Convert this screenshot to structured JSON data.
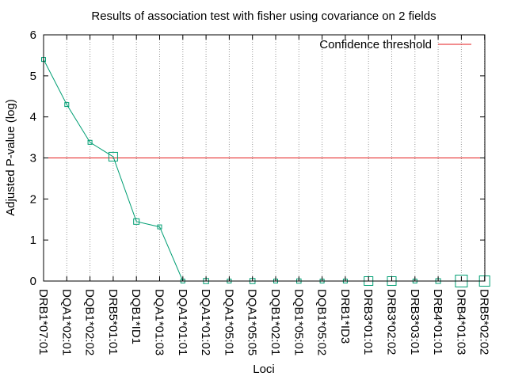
{
  "chart_data": {
    "type": "line",
    "title": "Results of association test with fisher using covariance on 2 fields",
    "xlabel": "Loci",
    "ylabel": "Adjusted P-value (log)",
    "ylim": [
      0,
      6
    ],
    "yticks": [
      "0",
      "1",
      "2",
      "3",
      "4",
      "5",
      "6"
    ],
    "grid": "vertical dotted lines at each category",
    "legend": "top-right",
    "categories": [
      "DRB1*07:01",
      "DQA1*02:01",
      "DQB1*02:02",
      "DRB5*01:01",
      "DQB1*ID1",
      "DQA1*01:03",
      "DQA1*01:01",
      "DQA1*01:02",
      "DQA1*05:01",
      "DQA1*05:05",
      "DQB1*02:01",
      "DQB1*05:01",
      "DQB1*05:02",
      "DRB1*ID3",
      "DRB3*01:01",
      "DRB3*02:02",
      "DRB3*03:01",
      "DRB4*01:01",
      "DRB4*01:03",
      "DRB5*02:02"
    ],
    "series": [
      {
        "name": "",
        "color": "#009e73",
        "values": [
          5.4,
          4.3,
          3.38,
          3.03,
          1.45,
          1.32,
          0,
          0,
          0,
          0,
          0,
          0,
          0,
          0,
          0,
          0,
          0,
          0,
          0,
          0
        ],
        "marker_scale": [
          1,
          1,
          1,
          2.2,
          1.4,
          1,
          1,
          1.3,
          1,
          1.3,
          1,
          1.1,
          1,
          1,
          2.2,
          2.2,
          1,
          1.2,
          3,
          2.6
        ]
      },
      {
        "name": "Confidence threshold",
        "color": "#e41a1c",
        "constant": 3
      }
    ]
  }
}
